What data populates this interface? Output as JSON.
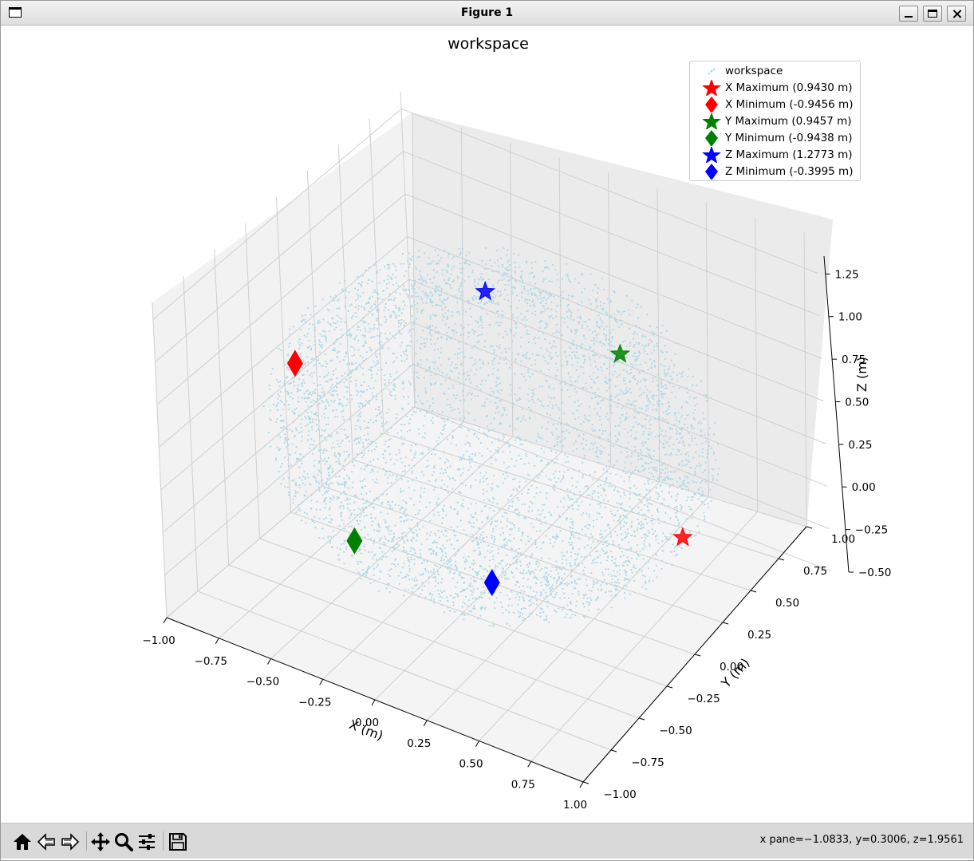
{
  "window": {
    "title": "Figure 1"
  },
  "toolbar": {
    "status": "x pane=−1.0833, y=0.3006, z=1.9561",
    "tools": [
      "home-icon",
      "back-icon",
      "forward-icon",
      "pan-icon",
      "zoom-icon",
      "configure-icon",
      "save-icon"
    ]
  },
  "chart_data": {
    "type": "scatter",
    "projection": "3d",
    "title": "workspace",
    "xlabel": "X (m)",
    "ylabel": "Y (m)",
    "zlabel": "Z (m)",
    "xlim": [
      -1.0,
      1.0
    ],
    "ylim": [
      -1.0,
      1.0
    ],
    "zlim": [
      -0.5,
      1.35
    ],
    "xticks": [
      "−1.00",
      "−0.75",
      "−0.50",
      "−0.25",
      "0.00",
      "0.25",
      "0.50",
      "0.75",
      "1.00"
    ],
    "yticks": [
      "−1.00",
      "−0.75",
      "−0.50",
      "−0.25",
      "0.00",
      "0.25",
      "0.50",
      "0.75",
      "1.00"
    ],
    "zticks": [
      "−0.50",
      "−0.25",
      "0.00",
      "0.25",
      "0.50",
      "0.75",
      "1.00",
      "1.25"
    ],
    "grid": true,
    "legend_position": "top-right",
    "workspace_color": "#add8e6",
    "workspace_shape": "partial sphere, radius approx. 0.945 m, centered near (0, 0, 0.43)",
    "series": [
      {
        "name": "workspace",
        "marker": "dot",
        "color": "#add8e6"
      },
      {
        "name": "X Maximum (0.9430 m)",
        "marker": "star",
        "color": "#ff0000",
        "x": 0.943,
        "y": -0.05,
        "z": 0.32
      },
      {
        "name": "X Minimum (-0.9456 m)",
        "marker": "diamond",
        "color": "#ff0000",
        "x": -0.9456,
        "y": 0.0,
        "z": 0.4
      },
      {
        "name": "Y Maximum (0.9457 m)",
        "marker": "star",
        "color": "#008000",
        "x": 0.05,
        "y": 0.9457,
        "z": 0.35
      },
      {
        "name": "Y Minimum (-0.9438 m)",
        "marker": "diamond",
        "color": "#008000",
        "x": -0.1,
        "y": -0.9438,
        "z": 0.35
      },
      {
        "name": "Z Maximum (1.2773 m)",
        "marker": "star",
        "color": "#0000ff",
        "x": 0.0,
        "y": 0.0,
        "z": 1.2773
      },
      {
        "name": "Z Minimum (-0.3995 m)",
        "marker": "diamond",
        "color": "#0000ff",
        "x": 0.0,
        "y": -0.05,
        "z": -0.3995
      }
    ]
  }
}
